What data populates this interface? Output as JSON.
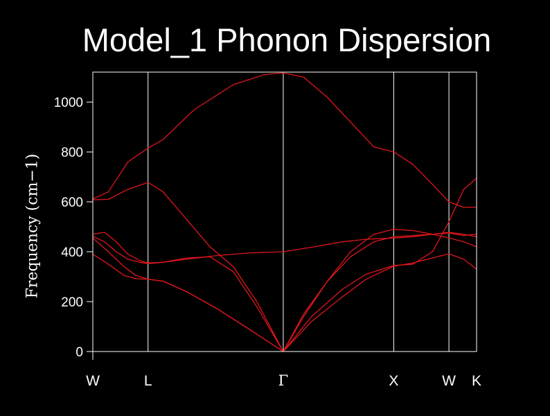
{
  "chart_data": {
    "type": "line",
    "title": "Model_1 Phonon Dispersion",
    "ylabel": "Frequency (cm−1)",
    "xlabel": "",
    "ylim": [
      0,
      1120
    ],
    "yticks": [
      0,
      200,
      400,
      600,
      800,
      1000
    ],
    "grid": false,
    "legend": "none",
    "line_color": "#e0161c",
    "axis_color": "#ffffff",
    "background": "#000000",
    "kpoints": [
      {
        "label": "W",
        "x": 0.0
      },
      {
        "label": "L",
        "x": 0.707
      },
      {
        "label": "Γ",
        "x": 2.439
      },
      {
        "label": "X",
        "x": 3.854
      },
      {
        "label": "W",
        "x": 4.561
      },
      {
        "label": "K",
        "x": 4.915
      }
    ],
    "series": [
      {
        "x": [
          0,
          0.2,
          0.45,
          0.707,
          0.9,
          1.3,
          1.8,
          2.2,
          2.439,
          2.7,
          3.0,
          3.3,
          3.6,
          3.854,
          4.1,
          4.35,
          4.561,
          4.75,
          4.915
        ],
        "y": [
          612,
          640,
          760,
          815,
          850,
          970,
          1070,
          1110,
          1117,
          1100,
          1020,
          920,
          820,
          800,
          750,
          670,
          600,
          578,
          578
        ]
      },
      {
        "x": [
          0,
          0.2,
          0.45,
          0.707,
          0.9,
          1.2,
          1.5,
          1.8,
          2.1,
          2.439,
          2.8,
          3.2,
          3.5,
          3.854,
          4.1,
          4.35,
          4.561,
          4.75,
          4.915
        ],
        "y": [
          608,
          610,
          650,
          678,
          640,
          530,
          420,
          340,
          200,
          0,
          120,
          220,
          290,
          342,
          355,
          375,
          392,
          370,
          330
        ]
      },
      {
        "x": [
          0,
          0.15,
          0.3,
          0.45,
          0.6,
          0.707,
          0.9,
          1.2,
          1.6,
          2.0,
          2.439,
          2.8,
          3.2,
          3.5,
          3.854,
          4.1,
          4.35,
          4.561,
          4.75,
          4.915
        ],
        "y": [
          470,
          478,
          440,
          390,
          365,
          355,
          358,
          370,
          385,
          395,
          400,
          418,
          440,
          450,
          455,
          460,
          470,
          478,
          470,
          460
        ]
      },
      {
        "x": [
          0,
          0.15,
          0.3,
          0.45,
          0.6,
          0.707,
          0.9,
          1.2,
          1.5,
          1.8,
          2.1,
          2.439,
          2.7,
          3.0,
          3.3,
          3.6,
          3.854,
          4.1,
          4.35,
          4.561,
          4.75,
          4.915
        ],
        "y": [
          462,
          440,
          400,
          370,
          358,
          352,
          358,
          375,
          380,
          320,
          180,
          0,
          150,
          280,
          380,
          440,
          460,
          465,
          470,
          475,
          465,
          470
        ]
      },
      {
        "x": [
          0,
          0.2,
          0.4,
          0.55,
          0.707,
          0.9,
          1.2,
          1.6,
          2.0,
          2.439,
          2.7,
          3.0,
          3.3,
          3.6,
          3.854,
          4.1,
          4.35,
          4.561,
          4.75,
          4.915
        ],
        "y": [
          455,
          400,
          340,
          305,
          290,
          282,
          240,
          170,
          90,
          0,
          140,
          280,
          400,
          470,
          490,
          485,
          470,
          455,
          440,
          420
        ]
      },
      {
        "x": [
          0,
          0.2,
          0.4,
          0.55,
          0.707,
          0.9,
          1.2,
          1.6,
          2.0,
          2.439,
          2.8,
          3.2,
          3.5,
          3.854,
          4.1,
          4.35,
          4.561,
          4.75,
          4.915
        ],
        "y": [
          390,
          350,
          305,
          292,
          290,
          282,
          240,
          170,
          90,
          0,
          140,
          250,
          310,
          345,
          350,
          400,
          520,
          650,
          695
        ]
      }
    ]
  }
}
